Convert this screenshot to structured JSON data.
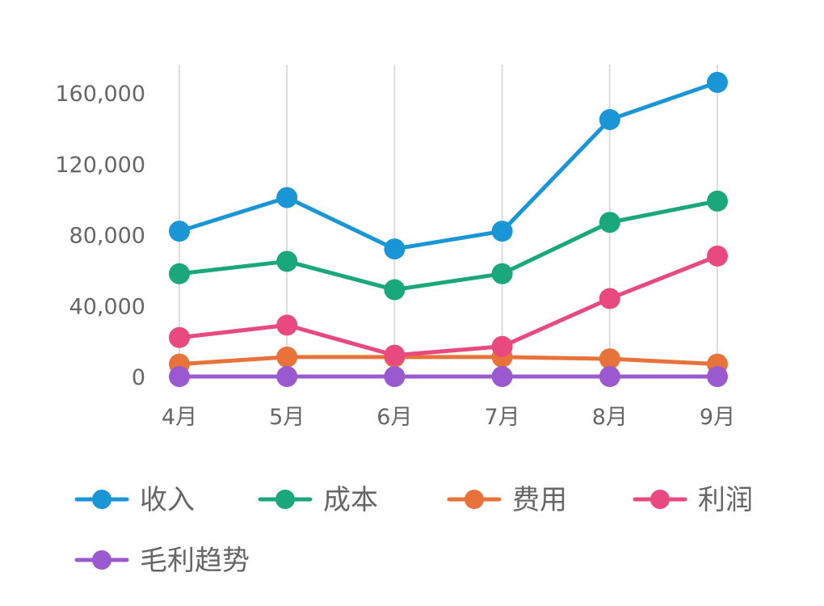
{
  "chart_data": {
    "type": "line",
    "categories": [
      "4月",
      "5月",
      "6月",
      "7月",
      "8月",
      "9月"
    ],
    "y_ticks": [
      0,
      40000,
      80000,
      120000,
      160000
    ],
    "y_tick_labels": [
      "0",
      "40,000",
      "80,000",
      "120,000",
      "160,000"
    ],
    "ylim": [
      0,
      176000
    ],
    "grid": "vertical",
    "legend_position": "bottom",
    "series": [
      {
        "name": "收入",
        "color": "#1a96d6",
        "values": [
          82000,
          101000,
          72000,
          82000,
          145000,
          166000
        ]
      },
      {
        "name": "成本",
        "color": "#1aa87a",
        "values": [
          58000,
          65000,
          49000,
          58000,
          87000,
          99000
        ]
      },
      {
        "name": "费用",
        "color": "#e8733a",
        "values": [
          7000,
          11000,
          11000,
          11000,
          10000,
          7000
        ]
      },
      {
        "name": "利润",
        "color": "#e84a7f",
        "values": [
          22000,
          29000,
          12000,
          17000,
          44000,
          68000
        ]
      },
      {
        "name": "毛利趋势",
        "color": "#9b59d0",
        "values": [
          0,
          0,
          0,
          0,
          0,
          0
        ]
      }
    ]
  }
}
